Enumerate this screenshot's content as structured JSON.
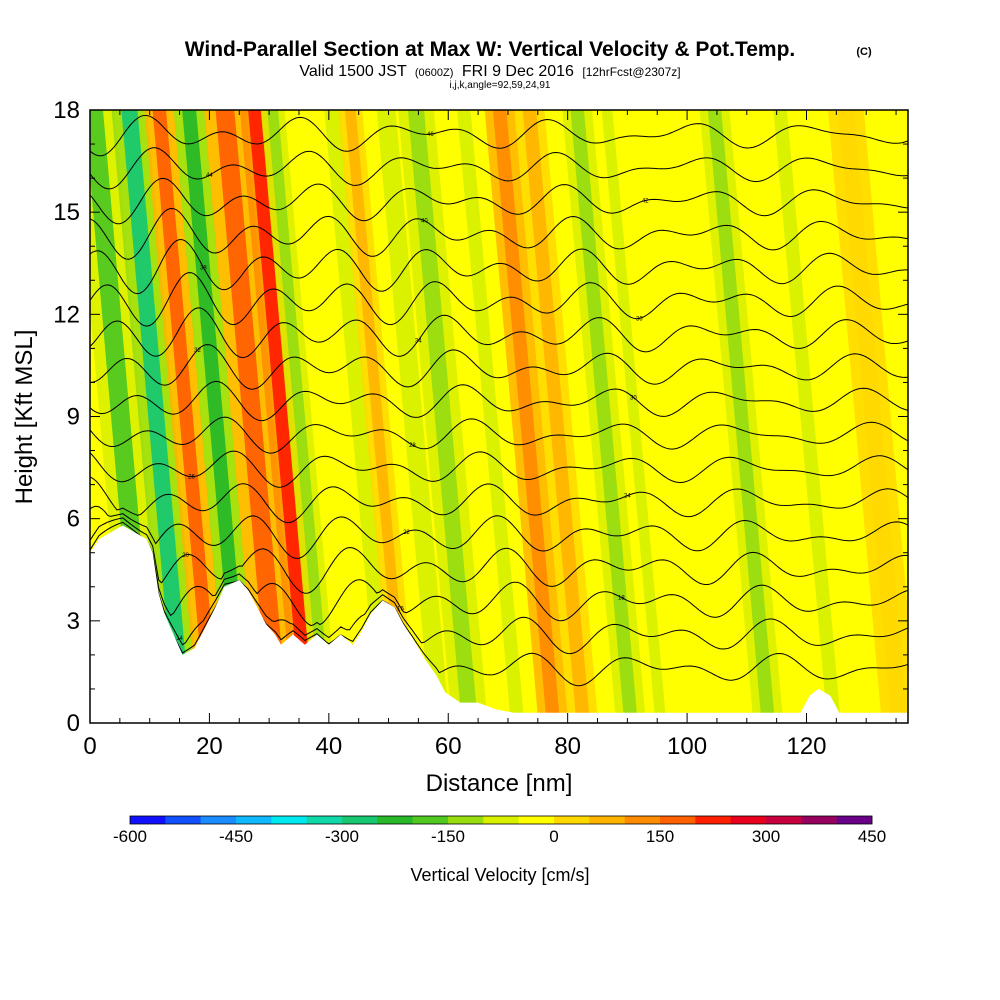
{
  "chart_data": {
    "type": "heatmap",
    "title": "Wind-Parallel Section at Max W: Vertical Velocity & Pot.Temp.",
    "title_mark": "(C)",
    "subtitle_valid": "Valid 1500 JST",
    "subtitle_utc": "(0600Z)",
    "subtitle_date": "FRI 9 Dec 2016",
    "subtitle_fcst": "[12hrFcst@2307z]",
    "subtitle_params": "i,j,k,angle=92,59,24,91",
    "xlabel": "Distance [nm]",
    "ylabel": "Height [Kft MSL]",
    "xlim": [
      0,
      137
    ],
    "ylim": [
      0,
      18
    ],
    "x_ticks": [
      0,
      20,
      40,
      60,
      80,
      100,
      120
    ],
    "y_ticks": [
      0,
      3,
      6,
      9,
      12,
      15,
      18
    ],
    "colorbar_label": "Vertical Velocity [cm/s]",
    "colorbar_ticks": [
      "-600",
      "-450",
      "-300",
      "-150",
      "0",
      "150",
      "300",
      "450"
    ],
    "colorbar_colors": [
      "#1010ff",
      "#1050ff",
      "#1a8cff",
      "#10b8ff",
      "#00e8f0",
      "#10d8a8",
      "#18c870",
      "#28b828",
      "#50c820",
      "#98dc10",
      "#d8f000",
      "#ffff00",
      "#ffd800",
      "#ffb400",
      "#ff8c00",
      "#ff6000",
      "#ff2000",
      "#e8001c",
      "#c80040",
      "#980060",
      "#6a0088"
    ],
    "velocity_bands": [
      {
        "x": 6,
        "w": 3.5,
        "value": -200
      },
      {
        "x": 12,
        "w": 3.0,
        "value": -260
      },
      {
        "x": 17,
        "w": 2.5,
        "value": 160
      },
      {
        "x": 22,
        "w": 2.6,
        "value": -220
      },
      {
        "x": 28,
        "w": 3.5,
        "value": 170
      },
      {
        "x": 33,
        "w": 2.5,
        "value": 220
      },
      {
        "x": 36,
        "w": 2.0,
        "value": -110
      },
      {
        "x": 46,
        "w": 3.0,
        "value": -90
      },
      {
        "x": 49,
        "w": 2.0,
        "value": 80
      },
      {
        "x": 55,
        "w": 3.5,
        "value": -100
      },
      {
        "x": 60,
        "w": 3.0,
        "value": -130
      },
      {
        "x": 68,
        "w": 2.5,
        "value": -80
      },
      {
        "x": 74,
        "w": 2.5,
        "value": 140
      },
      {
        "x": 79,
        "w": 2.5,
        "value": 80
      },
      {
        "x": 87,
        "w": 2.5,
        "value": -130
      },
      {
        "x": 92,
        "w": 2.0,
        "value": -70
      },
      {
        "x": 105,
        "w": 2.5,
        "value": -40
      },
      {
        "x": 110,
        "w": 2.5,
        "value": -120
      },
      {
        "x": 121,
        "w": 2.5,
        "value": -90
      },
      {
        "x": 132,
        "w": 3.0,
        "value": 40
      }
    ],
    "terrain": [
      [
        0,
        5.0
      ],
      [
        1.5,
        5.4
      ],
      [
        5.5,
        5.8
      ],
      [
        9.5,
        5.4
      ],
      [
        10.5,
        5.0
      ],
      [
        11.5,
        3.8
      ],
      [
        12.5,
        3.2
      ],
      [
        14,
        2.6
      ],
      [
        15.5,
        2.0
      ],
      [
        17.5,
        2.2
      ],
      [
        19,
        2.7
      ],
      [
        21,
        3.4
      ],
      [
        22.5,
        4.0
      ],
      [
        25,
        4.2
      ],
      [
        26.5,
        3.9
      ],
      [
        28,
        3.4
      ],
      [
        29.5,
        2.9
      ],
      [
        31,
        2.6
      ],
      [
        32,
        2.3
      ],
      [
        34,
        2.6
      ],
      [
        36,
        2.3
      ],
      [
        38,
        2.6
      ],
      [
        40,
        2.3
      ],
      [
        42,
        2.6
      ],
      [
        44,
        2.3
      ],
      [
        45.5,
        2.7
      ],
      [
        47,
        3.2
      ],
      [
        49,
        3.6
      ],
      [
        51,
        3.4
      ],
      [
        52.5,
        2.9
      ],
      [
        54,
        2.5
      ],
      [
        56,
        1.9
      ],
      [
        58,
        1.4
      ],
      [
        59.5,
        0.9
      ],
      [
        62,
        0.6
      ],
      [
        65,
        0.6
      ],
      [
        68,
        0.4
      ],
      [
        71,
        0.3
      ],
      [
        100,
        0.3
      ],
      [
        119,
        0.3
      ],
      [
        120.5,
        0.8
      ],
      [
        122,
        1.0
      ],
      [
        124,
        0.8
      ],
      [
        125.5,
        0.3
      ],
      [
        137,
        0.3
      ]
    ],
    "theta_contours": {
      "count": 17,
      "base_ft_kft": 1.6,
      "spacing_kft": 0.98,
      "labels": [
        "14",
        "16",
        "18",
        "20",
        "22",
        "24",
        "26",
        "28",
        "30",
        "32",
        "34",
        "36",
        "38",
        "40",
        "42",
        "44",
        "46"
      ]
    }
  }
}
